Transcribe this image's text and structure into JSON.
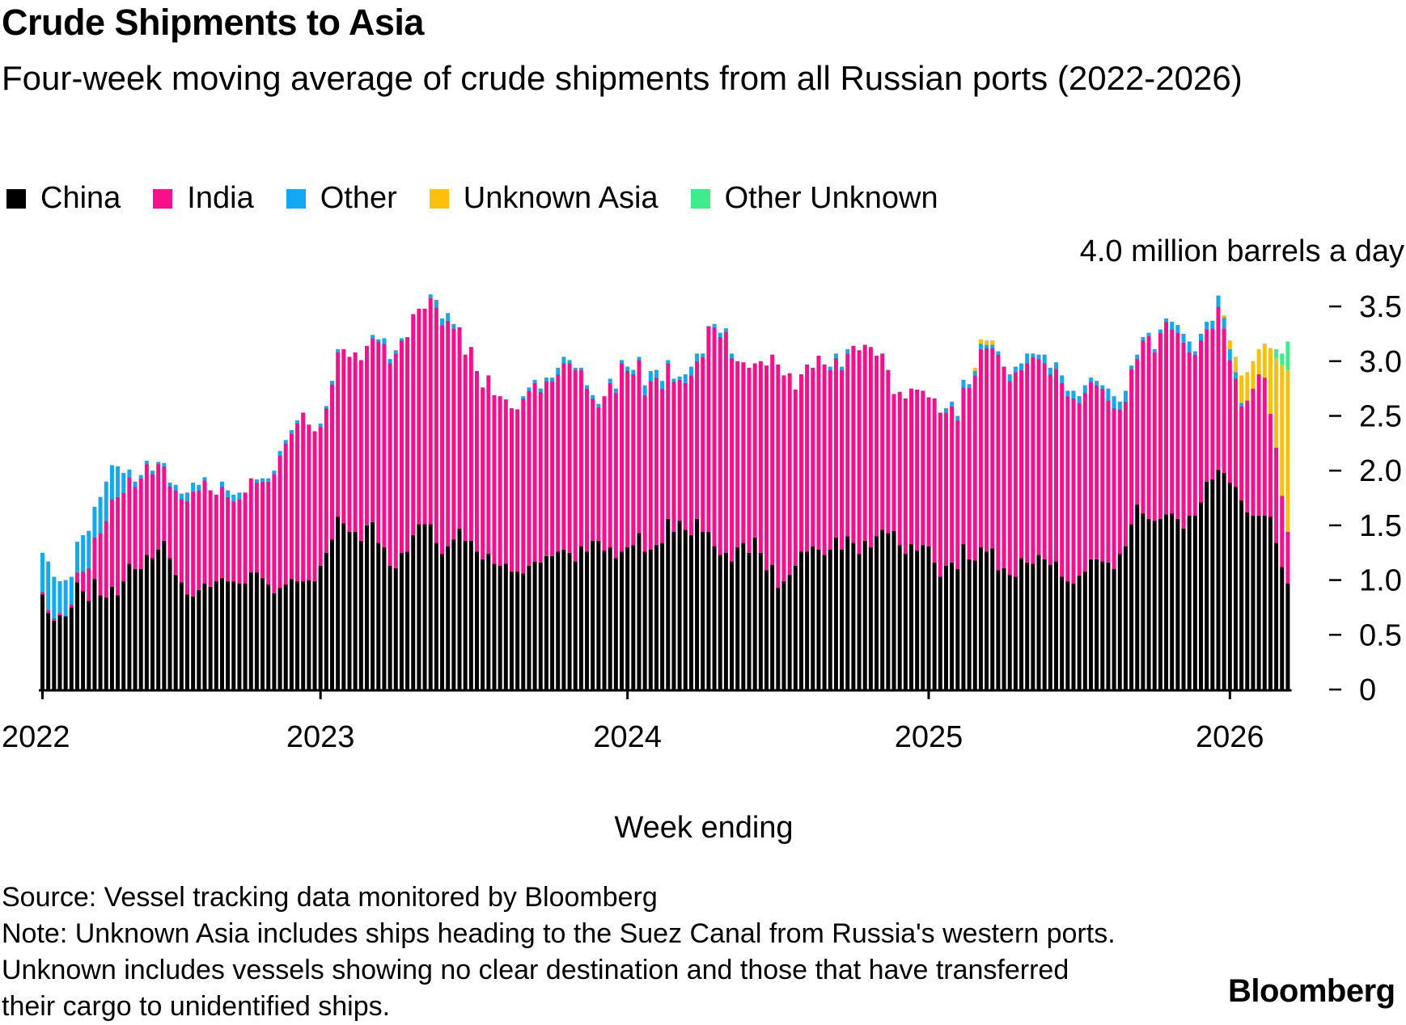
{
  "title": "Crude Shipments to Asia",
  "subtitle": "Four-week moving average of crude shipments from all Russian ports (2022-2026)",
  "legend": [
    {
      "label": "China",
      "color": "#000000"
    },
    {
      "label": "India",
      "color": "#f70f8c"
    },
    {
      "label": "Other",
      "color": "#12a8f2"
    },
    {
      "label": "Unknown Asia",
      "color": "#fcc00a"
    },
    {
      "label": "Other Unknown",
      "color": "#3ded8c"
    }
  ],
  "footer": {
    "source": "Source: Vessel tracking data monitored by Bloomberg",
    "note": "Note: Unknown Asia includes ships heading to the Suez Canal from Russia's western ports. Unknown includes vessels showing no clear destination and those that have transferred their cargo to unidentified ships."
  },
  "logo": "Bloomberg",
  "chart_data": {
    "type": "bar",
    "stacked": true,
    "title": "Crude Shipments to Asia",
    "subtitle": "Four-week moving average of crude shipments from all Russian ports (2022-2026)",
    "xlabel": "Week ending",
    "ylabel": "",
    "unit_label": "4.0 million barrels a day",
    "ylim": [
      0,
      4.0
    ],
    "y_ticks": [
      "0",
      "0.5",
      "1.0",
      "1.5",
      "2.0",
      "2.5",
      "3.0",
      "3.5"
    ],
    "x_ticks": [
      "2022",
      "2023",
      "2024",
      "2025",
      "2026"
    ],
    "grid": false,
    "legend_position": "top-left",
    "series": [
      {
        "name": "China",
        "color": "#000000",
        "values": [
          0.87,
          0.7,
          0.63,
          0.68,
          0.67,
          0.75,
          0.98,
          0.9,
          0.81,
          1.01,
          0.86,
          0.84,
          0.94,
          0.86,
          0.99,
          1.15,
          1.1,
          1.1,
          1.23,
          1.2,
          1.28,
          1.36,
          1.2,
          1.05,
          0.98,
          0.87,
          0.85,
          0.91,
          0.97,
          0.94,
          0.99,
          1.02,
          0.99,
          0.99,
          0.97,
          0.97,
          1.07,
          1.07,
          1.02,
          0.96,
          0.88,
          0.93,
          0.96,
          1.01,
          0.99,
          0.99,
          1.0,
          0.99,
          1.13,
          1.25,
          1.37,
          1.58,
          1.52,
          1.44,
          1.44,
          1.36,
          1.5,
          1.53,
          1.34,
          1.3,
          1.13,
          1.11,
          1.25,
          1.26,
          1.41,
          1.51,
          1.51,
          1.51,
          1.34,
          1.24,
          1.31,
          1.37,
          1.47,
          1.36,
          1.36,
          1.26,
          1.19,
          1.24,
          1.15,
          1.13,
          1.15,
          1.08,
          1.08,
          1.06,
          1.13,
          1.17,
          1.16,
          1.22,
          1.22,
          1.26,
          1.28,
          1.25,
          1.17,
          1.31,
          1.26,
          1.36,
          1.36,
          1.27,
          1.3,
          1.2,
          1.26,
          1.3,
          1.32,
          1.43,
          1.26,
          1.28,
          1.32,
          1.34,
          1.56,
          1.44,
          1.54,
          1.46,
          1.41,
          1.56,
          1.44,
          1.44,
          1.31,
          1.23,
          1.25,
          1.17,
          1.3,
          1.34,
          1.25,
          1.39,
          1.25,
          1.09,
          1.14,
          0.93,
          0.99,
          1.05,
          1.13,
          1.26,
          1.26,
          1.31,
          1.28,
          1.23,
          1.28,
          1.39,
          1.28,
          1.4,
          1.34,
          1.24,
          1.36,
          1.3,
          1.4,
          1.46,
          1.43,
          1.45,
          1.32,
          1.24,
          1.33,
          1.27,
          1.32,
          1.31,
          1.16,
          1.03,
          1.13,
          1.16,
          1.1,
          1.33,
          1.19,
          1.18,
          1.3,
          1.26,
          1.29,
          1.09,
          1.11,
          1.05,
          1.03,
          1.2,
          1.16,
          1.15,
          1.23,
          1.19,
          1.14,
          1.17,
          1.03,
          0.99,
          0.97,
          1.04,
          1.08,
          1.19,
          1.19,
          1.17,
          1.16,
          1.1,
          1.24,
          1.31,
          1.51,
          1.69,
          1.61,
          1.56,
          1.54,
          1.56,
          1.6,
          1.61,
          1.56,
          1.47,
          1.59,
          1.59,
          1.71,
          1.9,
          1.92,
          2.01,
          1.98,
          1.89,
          1.85,
          1.73,
          1.62,
          1.59,
          1.59,
          1.59,
          1.58,
          1.34,
          1.12,
          0.97
        ]
      },
      {
        "name": "India",
        "color": "#f70f8c",
        "values": [
          0.02,
          0.03,
          0.02,
          0.02,
          0,
          0.03,
          0.09,
          0.18,
          0.3,
          0.38,
          0.57,
          0.7,
          0.8,
          0.9,
          0.81,
          0.79,
          0.75,
          0.83,
          0.83,
          0.77,
          0.78,
          0.68,
          0.66,
          0.77,
          0.76,
          0.85,
          0.96,
          0.91,
          0.94,
          0.88,
          0.79,
          0.83,
          0.77,
          0.73,
          0.77,
          0.83,
          0.86,
          0.82,
          0.88,
          0.94,
          1.09,
          1.21,
          1.29,
          1.33,
          1.44,
          1.54,
          1.42,
          1.37,
          1.27,
          1.32,
          1.42,
          1.5,
          1.59,
          1.6,
          1.64,
          1.65,
          1.64,
          1.68,
          1.84,
          1.86,
          1.85,
          1.96,
          1.94,
          1.96,
          2.02,
          1.97,
          1.97,
          2.07,
          2.15,
          2.09,
          2.06,
          1.93,
          1.84,
          1.7,
          1.77,
          1.65,
          1.57,
          1.63,
          1.54,
          1.55,
          1.5,
          1.49,
          1.48,
          1.6,
          1.6,
          1.63,
          1.56,
          1.6,
          1.6,
          1.62,
          1.7,
          1.73,
          1.75,
          1.61,
          1.49,
          1.3,
          1.22,
          1.41,
          1.5,
          1.51,
          1.72,
          1.61,
          1.56,
          1.58,
          1.43,
          1.54,
          1.53,
          1.41,
          1.42,
          1.37,
          1.29,
          1.34,
          1.46,
          1.44,
          1.6,
          1.88,
          2.0,
          1.99,
          2.02,
          1.86,
          1.7,
          1.65,
          1.69,
          1.59,
          1.75,
          1.87,
          1.92,
          2.04,
          1.88,
          1.84,
          1.61,
          1.62,
          1.71,
          1.63,
          1.77,
          1.74,
          1.64,
          1.64,
          1.64,
          1.67,
          1.8,
          1.86,
          1.79,
          1.83,
          1.65,
          1.61,
          1.49,
          1.25,
          1.4,
          1.42,
          1.42,
          1.47,
          1.41,
          1.36,
          1.5,
          1.5,
          1.4,
          1.43,
          1.36,
          1.43,
          1.57,
          1.69,
          1.81,
          1.86,
          1.83,
          1.97,
          1.84,
          1.77,
          1.87,
          1.72,
          1.82,
          1.89,
          1.79,
          1.79,
          1.74,
          1.76,
          1.77,
          1.69,
          1.69,
          1.58,
          1.63,
          1.62,
          1.59,
          1.58,
          1.48,
          1.47,
          1.32,
          1.32,
          1.42,
          1.33,
          1.58,
          1.67,
          1.54,
          1.7,
          1.76,
          1.68,
          1.7,
          1.7,
          1.49,
          1.47,
          1.48,
          1.39,
          1.38,
          1.49,
          1.32,
          1.12,
          0.99,
          0.86,
          1.02,
          1.16,
          1.29,
          1.26,
          0.94,
          0.87,
          0.65,
          0.47
        ]
      },
      {
        "name": "Other",
        "color": "#12a8f2",
        "values": [
          0.36,
          0.44,
          0.38,
          0.29,
          0.33,
          0.25,
          0.28,
          0.33,
          0.34,
          0.28,
          0.33,
          0.36,
          0.31,
          0.28,
          0.18,
          0.07,
          0.05,
          0.03,
          0.03,
          0.03,
          0.02,
          0.03,
          0.03,
          0.05,
          0.05,
          0.08,
          0.08,
          0.05,
          0.03,
          0,
          0,
          0.05,
          0.06,
          0.06,
          0.06,
          0,
          0,
          0.03,
          0.03,
          0.03,
          0.03,
          0.04,
          0.03,
          0.03,
          0.03,
          0,
          0,
          0,
          0.03,
          0.02,
          0.03,
          0.03,
          0,
          0,
          0,
          0,
          0,
          0.03,
          0.02,
          0.05,
          0.04,
          0.03,
          0.02,
          0,
          0,
          0,
          0,
          0.03,
          0.07,
          0.06,
          0.07,
          0.04,
          0,
          0,
          0,
          0,
          0,
          0,
          0,
          0,
          0,
          0,
          0,
          0.02,
          0.03,
          0.03,
          0.03,
          0.03,
          0.03,
          0.06,
          0.06,
          0.03,
          0.02,
          0.02,
          0.03,
          0.03,
          0.03,
          0,
          0.04,
          0.04,
          0.03,
          0.04,
          0.04,
          0.03,
          0.09,
          0.09,
          0.07,
          0.07,
          0.03,
          0.03,
          0.03,
          0.08,
          0.08,
          0.07,
          0.03,
          0,
          0.03,
          0.04,
          0.03,
          0.04,
          0,
          0,
          0,
          0,
          0,
          0,
          0,
          0,
          0,
          0,
          0,
          0,
          0,
          0,
          0,
          0,
          0.03,
          0.04,
          0.03,
          0.04,
          0,
          0,
          0,
          0,
          0,
          0,
          0,
          0,
          0,
          0,
          0,
          0,
          0,
          0,
          0,
          0,
          0.04,
          0.04,
          0.04,
          0.07,
          0.03,
          0.04,
          0.05,
          0.03,
          0.03,
          0.03,
          0,
          0.06,
          0.05,
          0.06,
          0.09,
          0.03,
          0.04,
          0.08,
          0.06,
          0.06,
          0.07,
          0.05,
          0.07,
          0.06,
          0.07,
          0.04,
          0.04,
          0.03,
          0.11,
          0.11,
          0.07,
          0.1,
          0.03,
          0.04,
          0.03,
          0.03,
          0.03,
          0.03,
          0.03,
          0.07,
          0.07,
          0.08,
          0.1,
          0.03,
          0.06,
          0.07,
          0.07,
          0.1,
          0.1,
          0.1,
          0.06,
          0.03,
          0,
          0,
          0,
          0,
          0,
          0,
          0,
          0
        ]
      },
      {
        "name": "Unknown Asia",
        "color": "#fcc00a",
        "values": [
          0,
          0,
          0,
          0,
          0,
          0,
          0,
          0,
          0,
          0,
          0,
          0,
          0,
          0,
          0,
          0,
          0,
          0,
          0,
          0,
          0,
          0,
          0,
          0,
          0,
          0,
          0,
          0,
          0,
          0,
          0,
          0,
          0,
          0,
          0,
          0,
          0,
          0,
          0,
          0,
          0,
          0,
          0,
          0,
          0,
          0,
          0,
          0,
          0,
          0,
          0,
          0,
          0,
          0,
          0,
          0,
          0,
          0,
          0,
          0,
          0,
          0,
          0,
          0,
          0,
          0,
          0,
          0,
          0,
          0,
          0,
          0,
          0,
          0,
          0,
          0,
          0,
          0,
          0,
          0,
          0,
          0,
          0,
          0,
          0,
          0,
          0,
          0,
          0,
          0,
          0,
          0,
          0,
          0,
          0,
          0,
          0,
          0,
          0,
          0,
          0,
          0,
          0,
          0,
          0,
          0,
          0,
          0,
          0,
          0,
          0,
          0,
          0,
          0,
          0,
          0,
          0,
          0,
          0,
          0,
          0,
          0,
          0,
          0,
          0,
          0,
          0,
          0,
          0,
          0,
          0,
          0,
          0,
          0,
          0,
          0,
          0,
          0,
          0,
          0,
          0,
          0,
          0,
          0,
          0,
          0,
          0,
          0,
          0,
          0,
          0,
          0,
          0,
          0,
          0,
          0,
          0,
          0,
          0,
          0,
          0,
          0.03,
          0.04,
          0.04,
          0.04,
          0,
          0,
          0,
          0,
          0,
          0,
          0,
          0,
          0,
          0,
          0,
          0,
          0,
          0,
          0,
          0,
          0,
          0,
          0,
          0,
          0,
          0,
          0,
          0,
          0,
          0,
          0,
          0,
          0,
          0,
          0,
          0,
          0,
          0,
          0,
          0,
          0,
          0,
          0,
          0.02,
          0.08,
          0.14,
          0.25,
          0.26,
          0.25,
          0.23,
          0.31,
          0.6,
          0.82,
          1.2,
          1.48
        ]
      },
      {
        "name": "Other Unknown",
        "color": "#3ded8c",
        "values": [
          0,
          0,
          0,
          0,
          0,
          0,
          0,
          0,
          0,
          0,
          0,
          0,
          0,
          0,
          0,
          0,
          0,
          0,
          0,
          0,
          0,
          0,
          0,
          0,
          0,
          0,
          0,
          0,
          0,
          0,
          0,
          0,
          0,
          0,
          0,
          0,
          0,
          0,
          0,
          0,
          0,
          0,
          0,
          0,
          0,
          0,
          0,
          0,
          0,
          0,
          0,
          0,
          0,
          0,
          0,
          0,
          0,
          0,
          0,
          0,
          0,
          0,
          0,
          0,
          0,
          0,
          0,
          0,
          0,
          0,
          0,
          0,
          0,
          0,
          0,
          0,
          0,
          0,
          0,
          0,
          0,
          0,
          0,
          0,
          0,
          0,
          0,
          0,
          0,
          0,
          0,
          0,
          0,
          0,
          0,
          0,
          0,
          0,
          0,
          0,
          0,
          0,
          0,
          0,
          0,
          0,
          0,
          0,
          0,
          0,
          0,
          0,
          0,
          0,
          0,
          0,
          0,
          0,
          0,
          0,
          0,
          0,
          0,
          0,
          0,
          0,
          0,
          0,
          0,
          0,
          0,
          0,
          0,
          0,
          0,
          0,
          0,
          0,
          0,
          0,
          0,
          0,
          0,
          0,
          0,
          0,
          0,
          0,
          0,
          0,
          0,
          0,
          0,
          0,
          0,
          0,
          0,
          0,
          0,
          0,
          0,
          0,
          0,
          0,
          0,
          0,
          0,
          0,
          0,
          0,
          0,
          0,
          0,
          0,
          0,
          0,
          0,
          0,
          0,
          0,
          0,
          0,
          0,
          0,
          0,
          0,
          0,
          0,
          0,
          0,
          0,
          0,
          0,
          0,
          0,
          0,
          0,
          0,
          0,
          0,
          0,
          0,
          0,
          0,
          0,
          0,
          0,
          0,
          0,
          0,
          0,
          0,
          0,
          0.08,
          0.1,
          0.26
        ]
      }
    ]
  }
}
